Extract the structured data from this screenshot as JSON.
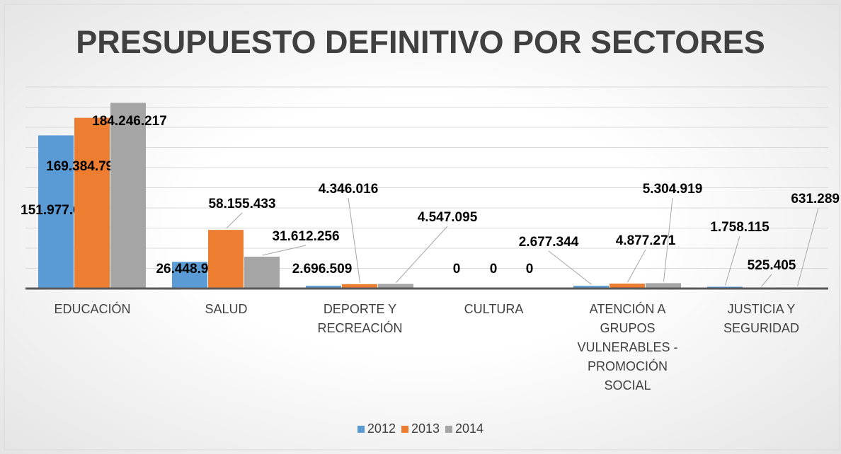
{
  "chart_data": {
    "type": "bar",
    "title": "PRESUPUESTO DEFINITIVO POR SECTORES",
    "categories": [
      "EDUCACIÓN",
      "SALUD",
      "DEPORTE Y RECREACIÓN",
      "CULTURA",
      "ATENCIÓN A GRUPOS VULNERABLES - PROMOCIÓN SOCIAL",
      "JUSTICIA Y SEGURIDAD"
    ],
    "series": [
      {
        "name": "2012",
        "color": "#5b9bd5",
        "values": [
          151977057,
          26448906,
          2696509,
          0,
          2677344,
          1758115
        ],
        "value_labels": [
          "151.977.057",
          "26.448.906",
          "2.696.509",
          "0",
          "2.677.344",
          "1.758.115"
        ]
      },
      {
        "name": "2013",
        "color": "#ed7d31",
        "values": [
          169384797,
          58155433,
          4346016,
          0,
          4877271,
          525405
        ],
        "value_labels": [
          "169.384.797",
          "58.155.433",
          "4.346.016",
          "0",
          "4.877.271",
          "525.405"
        ]
      },
      {
        "name": "2014",
        "color": "#a5a5a5",
        "values": [
          184246217,
          31612256,
          4547095,
          0,
          5304919,
          631289
        ],
        "value_labels": [
          "184.246.217",
          "31.612.256",
          "4.547.095",
          "0",
          "5.304.919",
          "631.289"
        ]
      }
    ],
    "ylim": [
      0,
      200000000
    ],
    "yticks": [
      0,
      20000000,
      40000000,
      60000000,
      80000000,
      100000000,
      120000000,
      140000000,
      160000000,
      180000000,
      200000000
    ],
    "grid": true,
    "legend": "bottom"
  }
}
